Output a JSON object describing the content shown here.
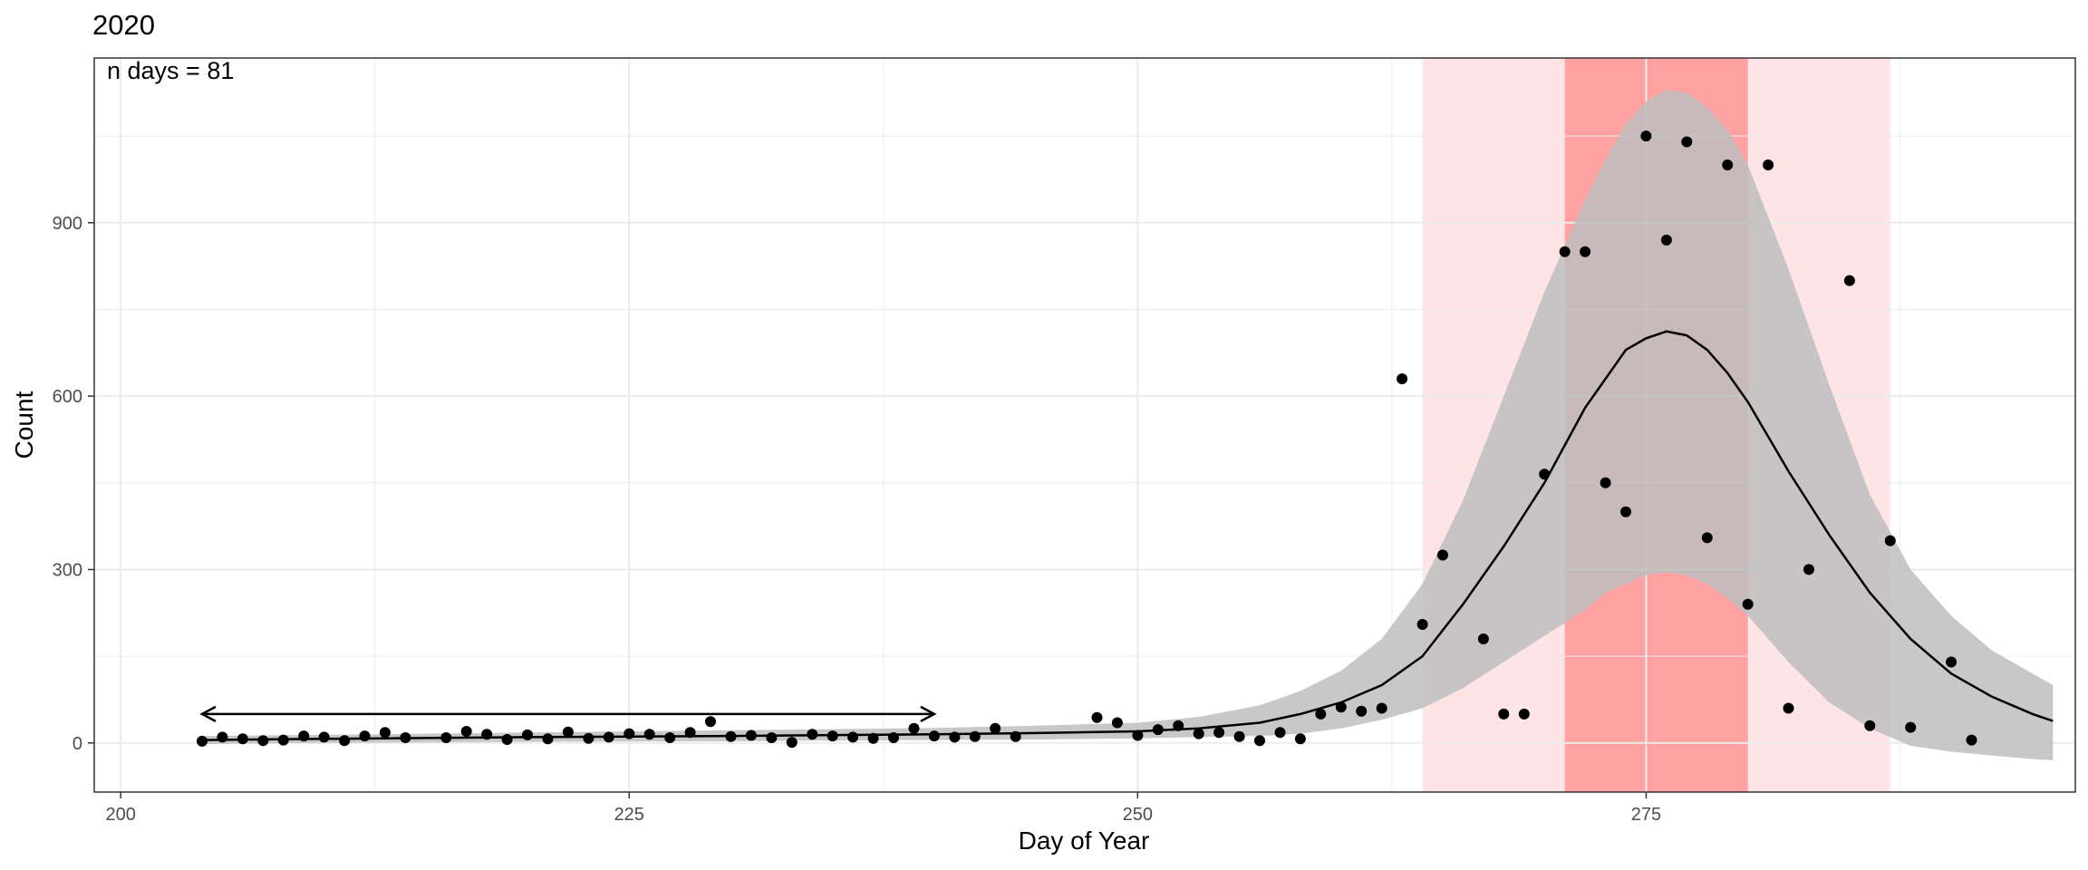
{
  "chart_data": {
    "type": "scatter",
    "title": "2020",
    "annotation": "n days = 81",
    "xlabel": "Day of Year",
    "ylabel": "Count",
    "xlim": [
      198.7,
      296.1
    ],
    "ylim": [
      -85,
      1185
    ],
    "x_ticks": [
      200,
      225,
      250,
      275
    ],
    "y_ticks": [
      0,
      300,
      600,
      900
    ],
    "grid": true,
    "colors": {
      "points": "#000000",
      "fit_line": "#000000",
      "ribbon": "#bebebe",
      "outer_band": "#ffe4e6",
      "inner_band": "#ffa1a1",
      "grid": "#ebebeb",
      "panel_border": "#333333"
    },
    "points": [
      {
        "x": 204,
        "y": 3
      },
      {
        "x": 205,
        "y": 10
      },
      {
        "x": 206,
        "y": 7
      },
      {
        "x": 207,
        "y": 4
      },
      {
        "x": 208,
        "y": 5
      },
      {
        "x": 209,
        "y": 12
      },
      {
        "x": 210,
        "y": 10
      },
      {
        "x": 211,
        "y": 4
      },
      {
        "x": 212,
        "y": 12
      },
      {
        "x": 213,
        "y": 18
      },
      {
        "x": 214,
        "y": 9
      },
      {
        "x": 216,
        "y": 9
      },
      {
        "x": 217,
        "y": 20
      },
      {
        "x": 218,
        "y": 15
      },
      {
        "x": 219,
        "y": 6
      },
      {
        "x": 220,
        "y": 14
      },
      {
        "x": 221,
        "y": 7
      },
      {
        "x": 222,
        "y": 19
      },
      {
        "x": 223,
        "y": 8
      },
      {
        "x": 224,
        "y": 10
      },
      {
        "x": 225,
        "y": 16
      },
      {
        "x": 226,
        "y": 15
      },
      {
        "x": 227,
        "y": 9
      },
      {
        "x": 228,
        "y": 18
      },
      {
        "x": 229,
        "y": 37
      },
      {
        "x": 230,
        "y": 11
      },
      {
        "x": 231,
        "y": 13
      },
      {
        "x": 232,
        "y": 9
      },
      {
        "x": 233,
        "y": 1
      },
      {
        "x": 234,
        "y": 15
      },
      {
        "x": 235,
        "y": 12
      },
      {
        "x": 236,
        "y": 10
      },
      {
        "x": 237,
        "y": 8
      },
      {
        "x": 238,
        "y": 9
      },
      {
        "x": 239,
        "y": 25
      },
      {
        "x": 240,
        "y": 12
      },
      {
        "x": 241,
        "y": 10
      },
      {
        "x": 242,
        "y": 11
      },
      {
        "x": 243,
        "y": 25
      },
      {
        "x": 244,
        "y": 11
      },
      {
        "x": 248,
        "y": 44
      },
      {
        "x": 249,
        "y": 35
      },
      {
        "x": 250,
        "y": 13
      },
      {
        "x": 251,
        "y": 23
      },
      {
        "x": 252,
        "y": 30
      },
      {
        "x": 253,
        "y": 16
      },
      {
        "x": 254,
        "y": 18
      },
      {
        "x": 255,
        "y": 11
      },
      {
        "x": 256,
        "y": 4
      },
      {
        "x": 257,
        "y": 18
      },
      {
        "x": 258,
        "y": 7
      },
      {
        "x": 259,
        "y": 50
      },
      {
        "x": 260,
        "y": 62
      },
      {
        "x": 261,
        "y": 55
      },
      {
        "x": 262,
        "y": 60
      },
      {
        "x": 263,
        "y": 630
      },
      {
        "x": 264,
        "y": 205
      },
      {
        "x": 265,
        "y": 325
      },
      {
        "x": 267,
        "y": 180
      },
      {
        "x": 268,
        "y": 50
      },
      {
        "x": 269,
        "y": 50
      },
      {
        "x": 270,
        "y": 465
      },
      {
        "x": 271,
        "y": 850
      },
      {
        "x": 272,
        "y": 850
      },
      {
        "x": 273,
        "y": 450
      },
      {
        "x": 274,
        "y": 400
      },
      {
        "x": 275,
        "y": 1050
      },
      {
        "x": 276,
        "y": 870
      },
      {
        "x": 277,
        "y": 1040
      },
      {
        "x": 278,
        "y": 355
      },
      {
        "x": 279,
        "y": 1000
      },
      {
        "x": 280,
        "y": 240
      },
      {
        "x": 281,
        "y": 1000
      },
      {
        "x": 282,
        "y": 60
      },
      {
        "x": 283,
        "y": 300
      },
      {
        "x": 285,
        "y": 800
      },
      {
        "x": 286,
        "y": 30
      },
      {
        "x": 287,
        "y": 350
      },
      {
        "x": 288,
        "y": 27
      },
      {
        "x": 290,
        "y": 140
      },
      {
        "x": 291,
        "y": 5
      }
    ],
    "fit": {
      "x": [
        204,
        210,
        220,
        230,
        240,
        245,
        250,
        253,
        256,
        258,
        260,
        262,
        264,
        266,
        268,
        270,
        272,
        273,
        274,
        275,
        276,
        277,
        278,
        279,
        280,
        282,
        284,
        286,
        288,
        290,
        292,
        294,
        295
      ],
      "y": [
        5,
        7,
        10,
        12,
        15,
        17,
        20,
        25,
        35,
        50,
        70,
        100,
        150,
        240,
        340,
        450,
        580,
        630,
        680,
        700,
        712,
        705,
        680,
        640,
        590,
        470,
        360,
        260,
        180,
        120,
        80,
        50,
        38
      ],
      "lower": [
        -2,
        0,
        2,
        3,
        5,
        6,
        8,
        10,
        12,
        16,
        25,
        40,
        60,
        95,
        140,
        185,
        230,
        260,
        275,
        290,
        295,
        290,
        275,
        250,
        220,
        140,
        70,
        25,
        -5,
        -15,
        -22,
        -28,
        -30
      ],
      "upper": [
        12,
        14,
        18,
        22,
        26,
        30,
        35,
        45,
        65,
        90,
        125,
        180,
        275,
        420,
        600,
        780,
        940,
        1010,
        1070,
        1110,
        1130,
        1125,
        1100,
        1060,
        1000,
        820,
        620,
        430,
        300,
        220,
        160,
        120,
        100
      ]
    },
    "outer_band": [
      264,
      287
    ],
    "inner_band": [
      271,
      280
    ],
    "arrow": {
      "x_start": 204,
      "x_end": 240,
      "y": 50
    }
  }
}
